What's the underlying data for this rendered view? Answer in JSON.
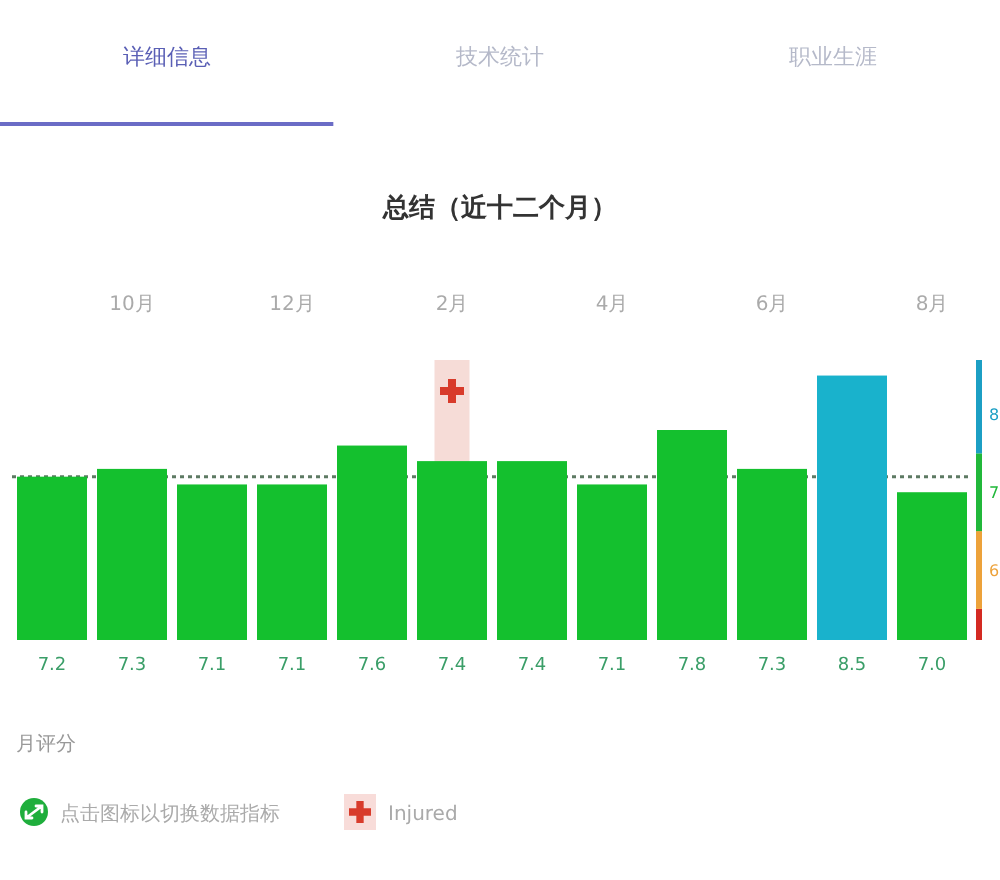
{
  "chart_data": {
    "type": "bar",
    "title": "总结（近十二个月）",
    "legend_title": "月评分",
    "annotations": [
      "详细信息",
      "技术统计",
      "职业生涯",
      "点击图标以切换数据指标"
    ],
    "categories": [
      null,
      "10月",
      null,
      "12月",
      null,
      "2月",
      null,
      "4月",
      null,
      "6月",
      null,
      "8月"
    ],
    "series": [
      {
        "values": [
          7.2,
          7.3,
          7.1,
          7.1,
          7.6,
          7.4,
          7.4,
          7.1,
          7.8,
          7.3,
          8.5,
          7.0
        ],
        "value_labels": [
          "7.2",
          "7.3",
          "7.1",
          "7.1",
          "7.6",
          "7.4",
          "7.4",
          "7.1",
          "7.8",
          "7.3",
          "8.5",
          "7.0"
        ],
        "colors": [
          "#14c02e",
          "#14c02e",
          "#14c02e",
          "#14c02e",
          "#14c02e",
          "#14c02e",
          "#14c02e",
          "#14c02e",
          "#14c02e",
          "#14c02e",
          "#19b2cc",
          "#14c02e"
        ]
      },
      {
        "name": "Injured",
        "type": "scatter",
        "x": [
          "2月"
        ],
        "values": [
          8.3
        ],
        "color": "#d83b2b",
        "marker": "cross"
      }
    ],
    "ylim": [
      5.1,
      8.7
    ],
    "yticks": [
      6,
      7,
      8
    ],
    "ref_lines": [
      {
        "axis": "y",
        "value": 7.2,
        "color": "#5d7a63",
        "line_style": "dotted"
      }
    ],
    "bands": [
      {
        "axis": "x",
        "from": "2月",
        "to": "2月",
        "color": "#f6dcd7"
      }
    ],
    "legend": "bottom left"
  }
}
